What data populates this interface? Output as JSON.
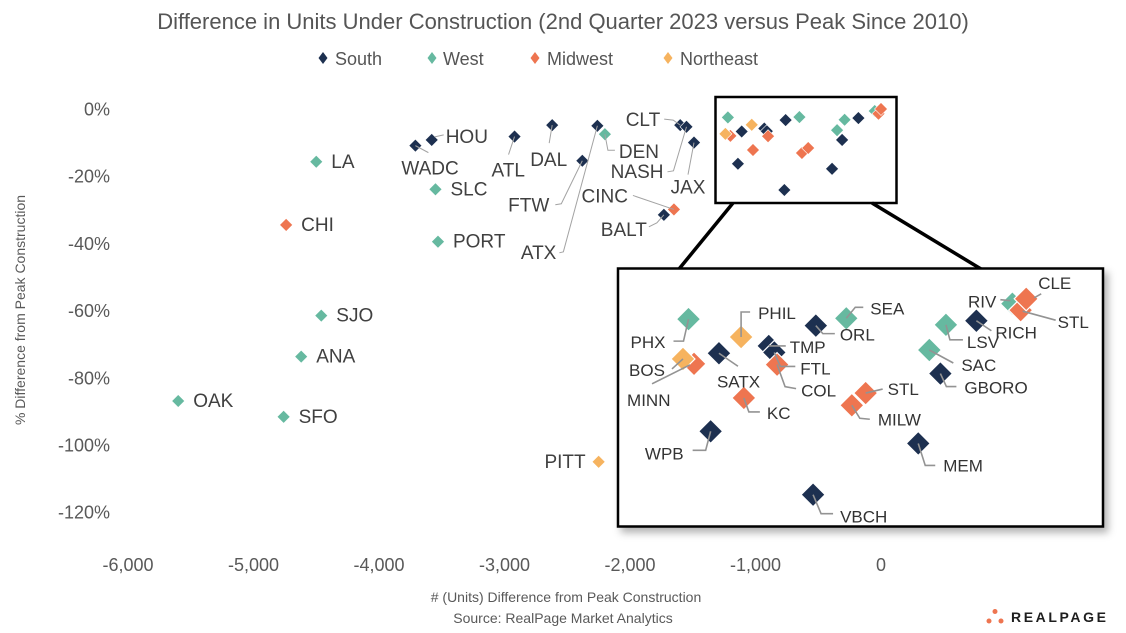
{
  "chart_data": {
    "type": "scatter",
    "title": "Difference in Units Under Construction (2nd Quarter 2023 versus Peak Since 2010)",
    "xlabel": "# (Units) Difference from Peak Construction",
    "ylabel": "% Difference from Peak Construction",
    "source": "Source: RealPage Market Analytics",
    "xlim": [
      -6000,
      0
    ],
    "ylim": [
      -120,
      0
    ],
    "x_ticks": [
      -6000,
      -5000,
      -4000,
      -3000,
      -2000,
      -1000,
      0
    ],
    "x_tick_labels": [
      "-6,000",
      "-5,000",
      "-4,000",
      "-3,000",
      "-2,000",
      "-1,000",
      "0"
    ],
    "y_ticks": [
      0,
      -20,
      -40,
      -60,
      -80,
      -100,
      -120
    ],
    "y_tick_labels": [
      "0%",
      "-20%",
      "-40%",
      "-60%",
      "-80%",
      "-100%",
      "-120%"
    ],
    "grid": false,
    "legend": {
      "position": "top-center"
    },
    "inset": {
      "xlim": [
        -1320,
        120
      ],
      "ylim": [
        -28,
        3.6
      ]
    },
    "series": [
      {
        "name": "South",
        "color": "#1d3050",
        "points": [
          {
            "label": "HOU",
            "x": -3580,
            "y": -9.2
          },
          {
            "label": "WADC",
            "x": -3710,
            "y": -10.9
          },
          {
            "label": "ATL",
            "x": -2920,
            "y": -8.2
          },
          {
            "label": "DAL",
            "x": -2620,
            "y": -4.8
          },
          {
            "label": "FTW",
            "x": -2380,
            "y": -15.4
          },
          {
            "label": "ATX",
            "x": -2260,
            "y": -5.0
          },
          {
            "label": "CLT",
            "x": -1600,
            "y": -4.8
          },
          {
            "label": "NASH",
            "x": -1550,
            "y": -5.3
          },
          {
            "label": "JAX",
            "x": -1490,
            "y": -10.0
          },
          {
            "label": "BALT",
            "x": -1730,
            "y": -31.5
          },
          {
            "label": "SATX",
            "x": -1110,
            "y": -6.7
          },
          {
            "label": "TMP",
            "x": -930,
            "y": -5.8
          },
          {
            "label": "FTL",
            "x": -910,
            "y": -6.6
          },
          {
            "label": "WPB",
            "x": -1140,
            "y": -16.3
          },
          {
            "label": "ORL",
            "x": -760,
            "y": -3.3
          },
          {
            "label": "VBCH",
            "x": -770,
            "y": -24.1
          },
          {
            "label": "RICH",
            "x": -180,
            "y": -2.7
          },
          {
            "label": "GBORO",
            "x": -310,
            "y": -9.2
          },
          {
            "label": "MEM",
            "x": -390,
            "y": -17.8
          }
        ]
      },
      {
        "name": "West",
        "color": "#66b9a0",
        "points": [
          {
            "label": "LA",
            "x": -4500,
            "y": -15.7
          },
          {
            "label": "SLC",
            "x": -3550,
            "y": -23.9
          },
          {
            "label": "PORT",
            "x": -3530,
            "y": -39.5
          },
          {
            "label": "SJO",
            "x": -4460,
            "y": -61.5
          },
          {
            "label": "ANA",
            "x": -4620,
            "y": -73.7
          },
          {
            "label": "OAK",
            "x": -5600,
            "y": -86.9
          },
          {
            "label": "SFO",
            "x": -4760,
            "y": -91.6
          },
          {
            "label": "DEN",
            "x": -2200,
            "y": -7.5
          },
          {
            "label": "PHX",
            "x": -1220,
            "y": -2.5
          },
          {
            "label": "SEA",
            "x": -650,
            "y": -2.4
          },
          {
            "label": "LSV",
            "x": -290,
            "y": -3.2
          },
          {
            "label": "SAC",
            "x": -350,
            "y": -6.3
          },
          {
            "label": "RIV",
            "x": -50,
            "y": -0.6
          }
        ]
      },
      {
        "name": "Midwest",
        "color": "#ee7550",
        "points": [
          {
            "label": "CHI",
            "x": -4740,
            "y": -34.5
          },
          {
            "label": "CINC",
            "x": -1650,
            "y": -29.9
          },
          {
            "label": "MINN",
            "x": -1200,
            "y": -8.0
          },
          {
            "label": "COL",
            "x": -900,
            "y": -8.1
          },
          {
            "label": "KC",
            "x": -1020,
            "y": -12.2
          },
          {
            "label": "MILW",
            "x": -630,
            "y": -13.1
          },
          {
            "label": "STL",
            "x": -580,
            "y": -11.6
          },
          {
            "label": "STL",
            "x": -20,
            "y": -1.4
          },
          {
            "label": "CLE",
            "x": 0,
            "y": 0.0
          }
        ]
      },
      {
        "name": "Northeast",
        "color": "#f6b35f",
        "points": [
          {
            "label": "PITT",
            "x": -2250,
            "y": -105.0
          },
          {
            "label": "BOS",
            "x": -1240,
            "y": -7.4
          },
          {
            "label": "PHIL",
            "x": -1030,
            "y": -4.7
          }
        ]
      }
    ]
  },
  "branding": {
    "logo_text": "REALPAGE",
    "logo_color": "#ee7550"
  }
}
